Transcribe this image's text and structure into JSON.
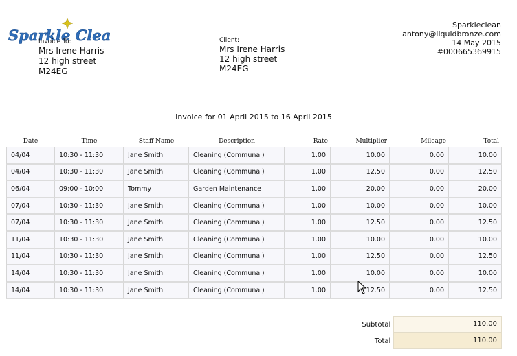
{
  "logo": {
    "text": "Sparkle Clean!"
  },
  "invoice_to": {
    "label": "Invoice To:",
    "name": "Mrs Irene Harris",
    "street": "12 high street",
    "postcode": "M24EG"
  },
  "client": {
    "label": "Client:",
    "name": "Mrs Irene Harris",
    "street": "12 high street",
    "postcode": "M24EG"
  },
  "company": {
    "name": "Sparkleclean",
    "email": "antony@liquidbronze.com",
    "date": "14 May 2015",
    "invoice_number": "#000665369915"
  },
  "period_text": "Invoice for 01 April 2015 to 16 April 2015",
  "table": {
    "headers": [
      "Date",
      "Time",
      "Staff Name",
      "Description",
      "Rate",
      "Multiplier",
      "Mileage",
      "Total"
    ],
    "rows": [
      [
        "04/04",
        "10:30 - 11:30",
        "Jane Smith",
        "Cleaning (Communal)",
        "1.00",
        "10.00",
        "0.00",
        "10.00"
      ],
      [
        "04/04",
        "10:30 - 11:30",
        "Jane Smith",
        "Cleaning (Communal)",
        "1.00",
        "12.50",
        "0.00",
        "12.50"
      ],
      [
        "06/04",
        "09:00 - 10:00",
        "Tommy",
        "Garden Maintenance",
        "1.00",
        "20.00",
        "0.00",
        "20.00"
      ],
      [
        "07/04",
        "10:30 - 11:30",
        "Jane Smith",
        "Cleaning (Communal)",
        "1.00",
        "10.00",
        "0.00",
        "10.00"
      ],
      [
        "07/04",
        "10:30 - 11:30",
        "Jane Smith",
        "Cleaning (Communal)",
        "1.00",
        "12.50",
        "0.00",
        "12.50"
      ],
      [
        "11/04",
        "10:30 - 11:30",
        "Jane Smith",
        "Cleaning (Communal)",
        "1.00",
        "10.00",
        "0.00",
        "10.00"
      ],
      [
        "11/04",
        "10:30 - 11:30",
        "Jane Smith",
        "Cleaning (Communal)",
        "1.00",
        "12.50",
        "0.00",
        "12.50"
      ],
      [
        "14/04",
        "10:30 - 11:30",
        "Jane Smith",
        "Cleaning (Communal)",
        "1.00",
        "10.00",
        "0.00",
        "10.00"
      ],
      [
        "14/04",
        "10:30 - 11:30",
        "Jane Smith",
        "Cleaning (Communal)",
        "1.00",
        "12.50",
        "0.00",
        "12.50"
      ]
    ]
  },
  "totals": {
    "subtotal_label": "Subtotal",
    "subtotal_value": "110.00",
    "total_label": "Total",
    "total_value": "110.00"
  },
  "colors": {
    "logo_blue": "#2f6db8",
    "logo_star": "#d9c21a",
    "row_bg": "#f7f7fb",
    "totals_bg": "#fbf6ea",
    "total_bg": "#f6ecd2"
  }
}
